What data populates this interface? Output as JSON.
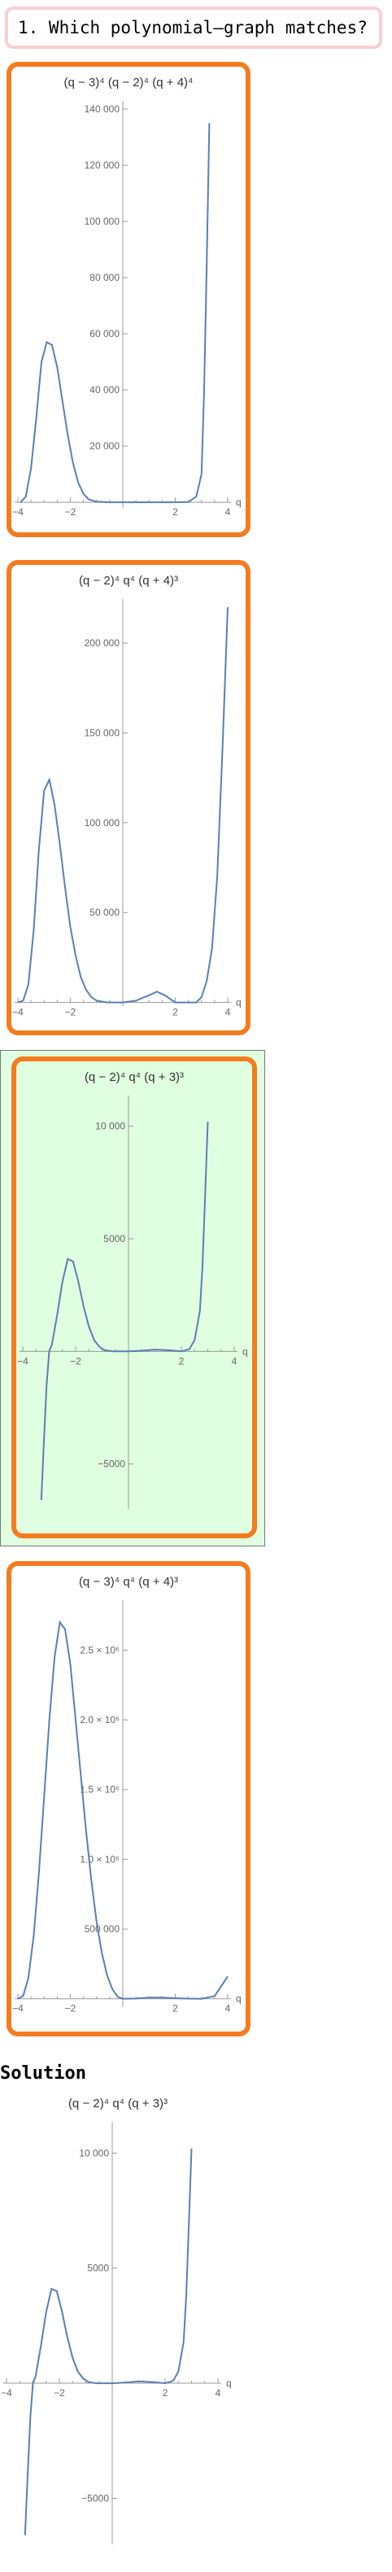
{
  "question": {
    "text": "1. Which polynomial–graph matches?"
  },
  "solution": {
    "label": "Solution"
  },
  "chart_data": [
    {
      "type": "line",
      "title": "(q − 3)⁴ (q − 2)⁴ (q + 4)⁴",
      "xlabel": "q",
      "xlim": [
        -4,
        4
      ],
      "ylim": [
        -2000,
        140000
      ],
      "xticks": [
        -4,
        -2,
        2,
        4
      ],
      "yticks": [
        20000,
        40000,
        60000,
        80000,
        100000,
        120000,
        140000
      ],
      "ytick_labels": [
        "20 000",
        "40 000",
        "60 000",
        "80 000",
        "100 000",
        "120 000",
        "140 000"
      ],
      "series": [
        {
          "x": [
            -3.9,
            -3.7,
            -3.5,
            -3.3,
            -3.1,
            -2.9,
            -2.7,
            -2.5,
            -2.3,
            -2.1,
            -1.9,
            -1.7,
            -1.5,
            -1.3,
            -1.0,
            -0.5,
            0,
            0.5,
            1.0,
            1.5,
            2.0,
            2.5,
            2.8,
            3.0,
            3.1,
            3.2,
            3.3
          ],
          "y": [
            0,
            2000,
            12000,
            30000,
            50000,
            57000,
            56000,
            48000,
            36000,
            24000,
            14000,
            7000,
            3000,
            1000,
            200,
            0,
            0,
            0,
            0,
            0,
            0,
            100,
            2000,
            10000,
            40000,
            85000,
            135000
          ]
        }
      ]
    },
    {
      "type": "line",
      "title": "(q − 2)⁴ q⁴ (q + 4)³",
      "xlabel": "q",
      "xlim": [
        -4,
        4
      ],
      "ylim": [
        -2000,
        220000
      ],
      "xticks": [
        -4,
        -2,
        2,
        4
      ],
      "yticks": [
        50000,
        100000,
        150000,
        200000
      ],
      "ytick_labels": [
        "50 000",
        "100 000",
        "150 000",
        "200 000"
      ],
      "series": [
        {
          "x": [
            -4.0,
            -3.8,
            -3.6,
            -3.4,
            -3.2,
            -3.0,
            -2.8,
            -2.6,
            -2.4,
            -2.2,
            -2.0,
            -1.8,
            -1.6,
            -1.4,
            -1.2,
            -1.0,
            -0.6,
            0,
            0.5,
            1.0,
            1.3,
            1.6,
            2.0,
            2.4,
            2.8,
            3.0,
            3.2,
            3.4,
            3.6,
            3.8,
            4.0
          ],
          "y": [
            0,
            1000,
            10000,
            40000,
            85000,
            118000,
            124000,
            110000,
            88000,
            64000,
            42000,
            26000,
            14000,
            7000,
            3000,
            1000,
            0,
            0,
            1000,
            4000,
            6000,
            4000,
            0,
            0,
            0,
            3000,
            12000,
            30000,
            70000,
            140000,
            220000
          ]
        }
      ]
    },
    {
      "type": "line",
      "title": "(q − 2)⁴ q⁴ (q + 3)³",
      "xlabel": "q",
      "xlim": [
        -4,
        4
      ],
      "ylim": [
        -7000,
        11000
      ],
      "xticks": [
        -4,
        -2,
        2,
        4
      ],
      "yticks": [
        -5000,
        5000,
        10000
      ],
      "ytick_labels": [
        "−5000",
        "5000",
        "10 000"
      ],
      "series": [
        {
          "x": [
            -3.3,
            -3.2,
            -3.1,
            -3.0,
            -2.9,
            -2.7,
            -2.5,
            -2.3,
            -2.1,
            -1.9,
            -1.7,
            -1.5,
            -1.3,
            -1.1,
            -0.9,
            -0.6,
            0,
            0.5,
            1.0,
            1.5,
            2.0,
            2.3,
            2.5,
            2.7,
            2.8,
            2.9,
            3.0
          ],
          "y": [
            -6600,
            -4000,
            -1500,
            0,
            300,
            1600,
            3100,
            4100,
            4000,
            3100,
            2000,
            1100,
            500,
            200,
            50,
            0,
            0,
            30,
            80,
            50,
            0,
            100,
            500,
            1800,
            3800,
            7000,
            10200
          ]
        }
      ]
    },
    {
      "type": "line",
      "title": "(q − 3)⁴ q⁴ (q + 4)³",
      "xlabel": "q",
      "xlim": [
        -4,
        4
      ],
      "ylim": [
        -60000,
        2800000
      ],
      "xticks": [
        -4,
        -2,
        2,
        4
      ],
      "yticks": [
        500000,
        1000000,
        1500000,
        2000000,
        2500000
      ],
      "ytick_labels": [
        "500 000",
        "1.0 × 10⁶",
        "1.5 × 10⁶",
        "2.0 × 10⁶",
        "2.5 × 10⁶"
      ],
      "series": [
        {
          "x": [
            -4.0,
            -3.8,
            -3.6,
            -3.4,
            -3.2,
            -3.0,
            -2.8,
            -2.6,
            -2.4,
            -2.2,
            -2.0,
            -1.8,
            -1.6,
            -1.4,
            -1.2,
            -1.0,
            -0.8,
            -0.6,
            -0.4,
            -0.2,
            0,
            0.5,
            1.0,
            1.5,
            2.0,
            2.5,
            3.0,
            3.5,
            4.0
          ],
          "y": [
            0,
            20000,
            150000,
            450000,
            900000,
            1450000,
            2000000,
            2450000,
            2700000,
            2650000,
            2400000,
            2000000,
            1600000,
            1200000,
            850000,
            550000,
            330000,
            170000,
            70000,
            15000,
            0,
            2000,
            8000,
            8000,
            4000,
            1000,
            0,
            20000,
            160000
          ]
        }
      ]
    },
    {
      "type": "line",
      "title": "(q − 2)⁴ q⁴ (q + 3)³",
      "xlabel": "q",
      "xlim": [
        -4,
        4
      ],
      "ylim": [
        -7000,
        11000
      ],
      "xticks": [
        -4,
        -2,
        2,
        4
      ],
      "yticks": [
        -5000,
        5000,
        10000
      ],
      "ytick_labels": [
        "−5000",
        "5000",
        "10 000"
      ],
      "series": [
        {
          "x": [
            -3.3,
            -3.2,
            -3.1,
            -3.0,
            -2.9,
            -2.7,
            -2.5,
            -2.3,
            -2.1,
            -1.9,
            -1.7,
            -1.5,
            -1.3,
            -1.1,
            -0.9,
            -0.6,
            0,
            0.5,
            1.0,
            1.5,
            2.0,
            2.3,
            2.5,
            2.7,
            2.8,
            2.9,
            3.0
          ],
          "y": [
            -6600,
            -4000,
            -1500,
            0,
            300,
            1600,
            3100,
            4100,
            4000,
            3100,
            2000,
            1100,
            500,
            200,
            50,
            0,
            0,
            30,
            80,
            50,
            0,
            100,
            500,
            1800,
            3800,
            7000,
            10200
          ]
        }
      ]
    }
  ]
}
